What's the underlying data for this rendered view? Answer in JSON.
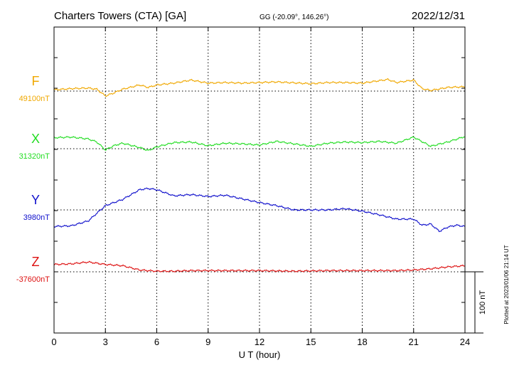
{
  "chart_data": {
    "type": "line",
    "title": "Charters Towers (CTA)  [GA]",
    "coords": "GG (-20.09°, 146.26°)",
    "date": "2022/12/31",
    "xlabel": "U T (hour)",
    "xlim": [
      0,
      24
    ],
    "xticks": [
      "0",
      "3",
      "6",
      "9",
      "12",
      "15",
      "18",
      "21",
      "24"
    ],
    "grid": true,
    "scale_bar_label": "100 nT",
    "scale_bar_nT": 100,
    "footer": "Plotted at 2023/01/06 21:14 UT",
    "series": [
      {
        "name": "F",
        "baseline_label": "49100nT",
        "baseline_nT": 49100,
        "color": "#f0a800",
        "x": [
          0,
          1,
          2,
          2.5,
          3,
          3.5,
          4,
          5,
          5.5,
          6,
          7,
          8,
          9,
          10,
          11,
          12,
          13,
          15,
          16,
          17,
          18,
          19,
          19.5,
          20,
          21,
          21.5,
          22,
          23,
          24
        ],
        "y": [
          49102,
          49104,
          49105,
          49103,
          49092,
          49097,
          49103,
          49110,
          49106,
          49110,
          49113,
          49118,
          49113,
          49114,
          49113,
          49114,
          49115,
          49112,
          49114,
          49114,
          49113,
          49117,
          49119,
          49114,
          49118,
          49104,
          49101,
          49106,
          49107
        ]
      },
      {
        "name": "X",
        "baseline_label": "31320nT",
        "baseline_nT": 31320,
        "color": "#22dd22",
        "x": [
          0,
          1,
          2,
          2.5,
          3,
          3.5,
          4,
          5,
          5.5,
          6,
          7,
          8,
          9,
          10,
          11,
          12,
          13,
          15,
          16,
          17,
          18,
          19,
          20,
          21,
          22,
          23,
          24
        ],
        "y": [
          31338,
          31339,
          31336,
          31331,
          31318,
          31325,
          31329,
          31322,
          31317,
          31323,
          31330,
          31331,
          31325,
          31329,
          31328,
          31326,
          31332,
          31324,
          31329,
          31331,
          31330,
          31332,
          31329,
          31339,
          31324,
          31331,
          31340
        ]
      },
      {
        "name": "Y",
        "baseline_label": "3980nT",
        "baseline_nT": 3980,
        "color": "#1010cc",
        "x": [
          0,
          1,
          2,
          3,
          4,
          5,
          5.5,
          6,
          7,
          8,
          9,
          10,
          11,
          12,
          13,
          14,
          15,
          16,
          17,
          18,
          19,
          20,
          21,
          21.5,
          22,
          22.5,
          23,
          23.5,
          24
        ],
        "y": [
          3953,
          3954,
          3962,
          3987,
          3997,
          4013,
          4015,
          4013,
          4003,
          4005,
          4002,
          4004,
          3998,
          3992,
          3987,
          3980,
          3980,
          3980,
          3982,
          3978,
          3972,
          3965,
          3965,
          3955,
          3957,
          3945,
          3952,
          3955,
          3953
        ]
      },
      {
        "name": "Z",
        "baseline_label": "-37600nT",
        "baseline_nT": -37600,
        "color": "#dd1010",
        "x": [
          0,
          1,
          2,
          3,
          4,
          5,
          6,
          7,
          8,
          9,
          10,
          12,
          14,
          16,
          18,
          20,
          21,
          22,
          23,
          24
        ],
        "y": [
          -37588,
          -37587,
          -37584,
          -37588,
          -37590,
          -37597,
          -37599,
          -37599,
          -37598,
          -37598,
          -37598,
          -37598,
          -37599,
          -37598,
          -37598,
          -37598,
          -37597,
          -37595,
          -37592,
          -37590
        ]
      }
    ]
  }
}
